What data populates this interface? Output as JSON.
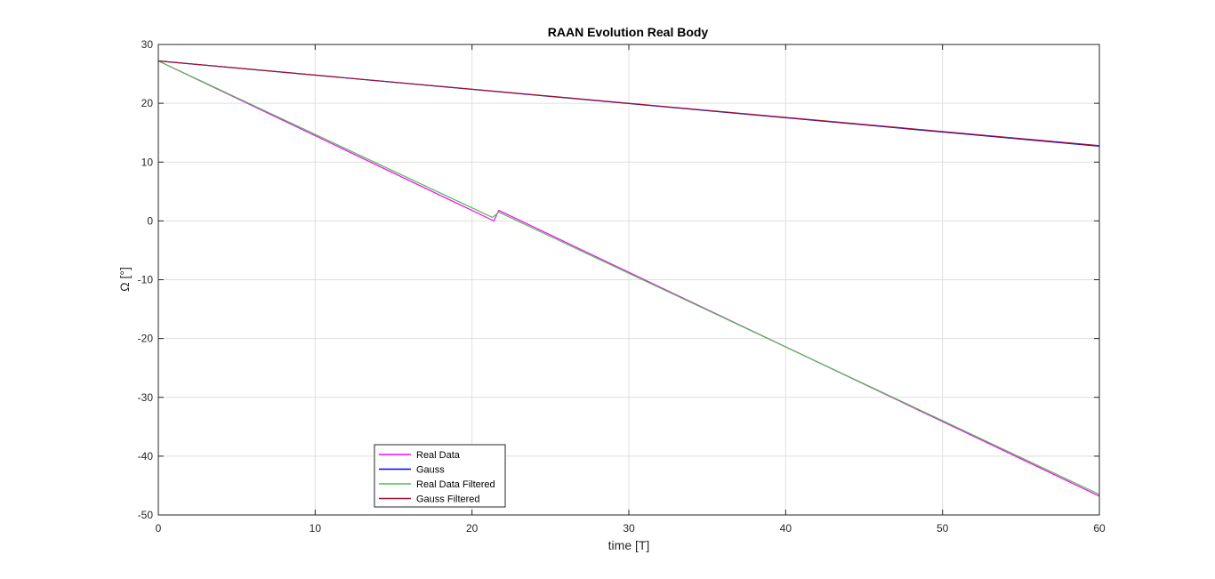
{
  "chart_data": {
    "type": "line",
    "title": "RAAN Evolution Real Body",
    "xlabel": "time [T]",
    "ylabel": "Ω [°]",
    "xlim": [
      0,
      60
    ],
    "ylim": [
      -50,
      30
    ],
    "xticks": [
      0,
      10,
      20,
      30,
      40,
      50,
      60
    ],
    "yticks": [
      -50,
      -40,
      -30,
      -20,
      -10,
      0,
      10,
      20,
      30
    ],
    "grid": true,
    "legend_position": "bottom-left",
    "series": [
      {
        "name": "Real Data",
        "color": "#ff00ff",
        "x": [
          0,
          21.4,
          21.4,
          21.7,
          60
        ],
        "y": [
          27.2,
          0.0,
          0.0,
          1.8,
          -46.8
        ]
      },
      {
        "name": "Gauss",
        "color": "#0000ff",
        "x": [
          0,
          60
        ],
        "y": [
          27.2,
          12.7
        ]
      },
      {
        "name": "Real Data Filtered",
        "color": "#4dbf4d",
        "x": [
          0,
          21.3,
          21.5,
          21.7,
          60
        ],
        "y": [
          27.2,
          0.6,
          1.0,
          1.5,
          -46.5
        ]
      },
      {
        "name": "Gauss Filtered",
        "color": "#a2142f",
        "x": [
          0,
          60
        ],
        "y": [
          27.2,
          12.8
        ]
      }
    ]
  }
}
